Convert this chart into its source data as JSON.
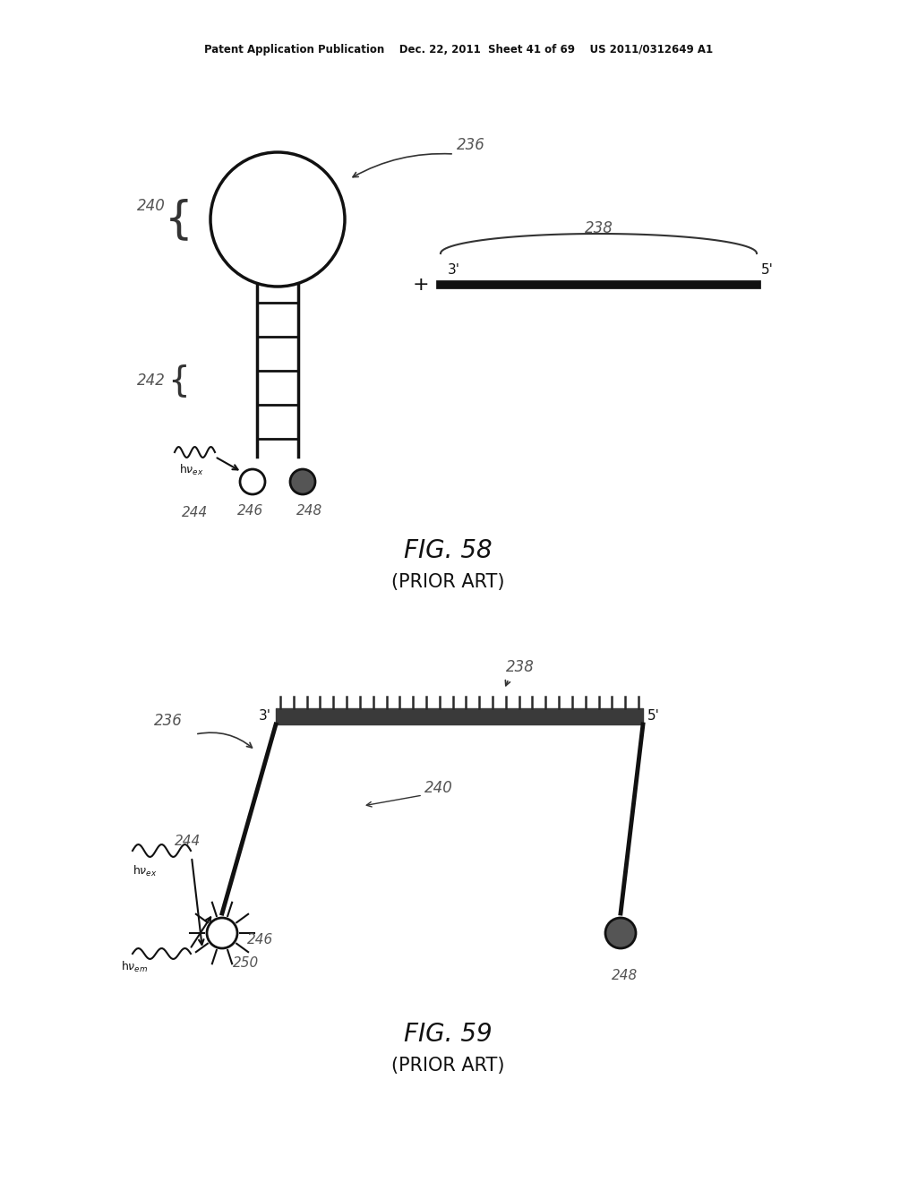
{
  "bg_color": "#ffffff",
  "header_text": "Patent Application Publication    Dec. 22, 2011  Sheet 41 of 69    US 2011/0312649 A1",
  "fig58_title": "FIG. 58",
  "fig58_subtitle": "(PRIOR ART)",
  "fig59_title": "FIG. 59",
  "fig59_subtitle": "(PRIOR ART)",
  "label_color": "#555555",
  "line_color": "#333333",
  "dark_color": "#111111"
}
